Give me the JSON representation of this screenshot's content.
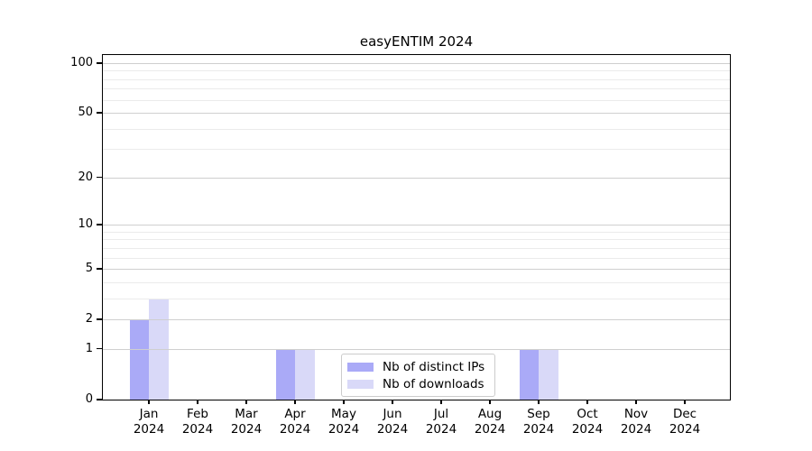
{
  "chart_data": {
    "type": "bar",
    "title": "easyENTIM 2024",
    "categories": [
      "Jan",
      "Feb",
      "Mar",
      "Apr",
      "May",
      "Jun",
      "Jul",
      "Aug",
      "Sep",
      "Oct",
      "Nov",
      "Dec"
    ],
    "category_year": "2024",
    "series": [
      {
        "name": "Nb of distinct IPs",
        "color": "#aaaaf7",
        "values": [
          2,
          0,
          0,
          1,
          0,
          0,
          0,
          0,
          1,
          0,
          0,
          0
        ]
      },
      {
        "name": "Nb of downloads",
        "color": "#d9d9f8",
        "values": [
          3,
          0,
          0,
          1,
          0,
          0,
          0,
          0,
          1,
          0,
          0,
          0
        ]
      }
    ],
    "y_axis": {
      "scale": "log(1+x)",
      "ticks": [
        0,
        1,
        2,
        5,
        10,
        20,
        50,
        100
      ],
      "minor_gridlines": [
        3,
        4,
        6,
        7,
        8,
        9,
        30,
        40,
        60,
        70,
        80,
        90
      ],
      "ylim": [
        0,
        113
      ]
    },
    "grid": true,
    "legend_position": "lower center",
    "colors": {
      "major_grid": "#cfcfcf",
      "minor_grid": "#ebebeb",
      "axis": "#000000",
      "legend_border": "#cccccc",
      "background": "#ffffff"
    }
  }
}
